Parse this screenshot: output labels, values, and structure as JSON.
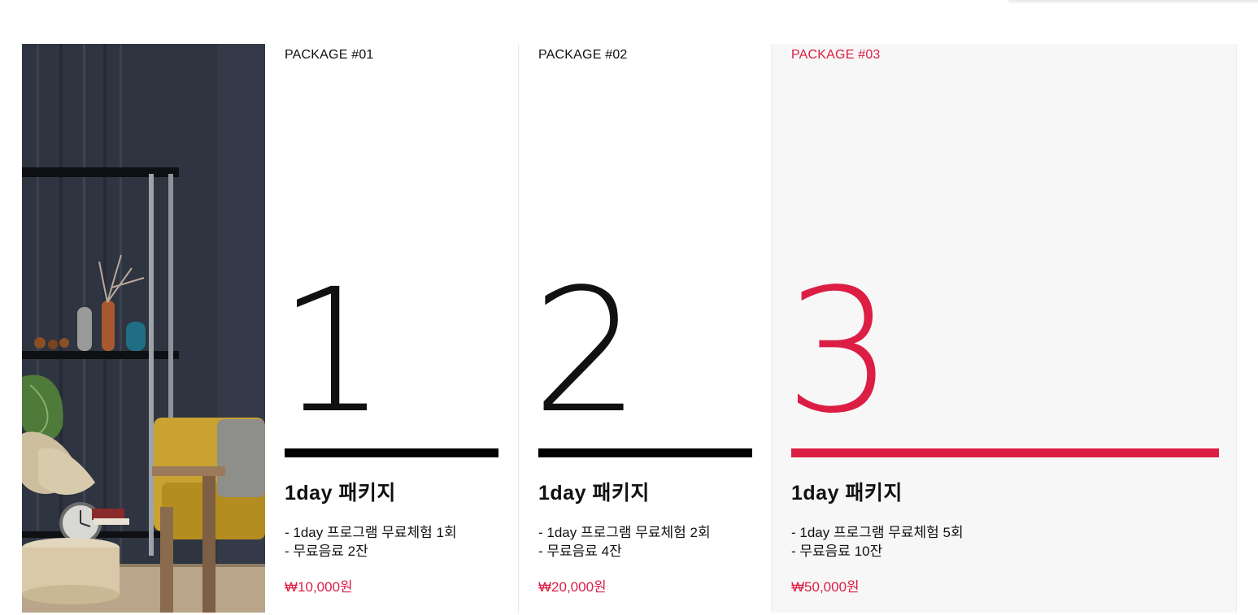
{
  "colors": {
    "accent": "#dc1e44",
    "text": "#111111",
    "highlight_bg": "#f7f7f7"
  },
  "hero_image": {
    "description_icon": "living-room-photo"
  },
  "packages": [
    {
      "label": "PACKAGE #01",
      "number": "1",
      "title": "1day 패키지",
      "features": [
        "- 1day 프로그램 무료체험 1회",
        "- 무료음료 2잔"
      ],
      "price": "₩10,000원"
    },
    {
      "label": "PACKAGE #02",
      "number": "2",
      "title": "1day 패키지",
      "features": [
        "- 1day 프로그램 무료체험 2회",
        "- 무료음료 4잔"
      ],
      "price": "₩20,000원"
    },
    {
      "label": "PACKAGE #03",
      "number": "3",
      "title": "1day 패키지",
      "features": [
        "- 1day 프로그램 무료체험 5회",
        "- 무료음료 10잔"
      ],
      "price": "₩50,000원"
    }
  ]
}
